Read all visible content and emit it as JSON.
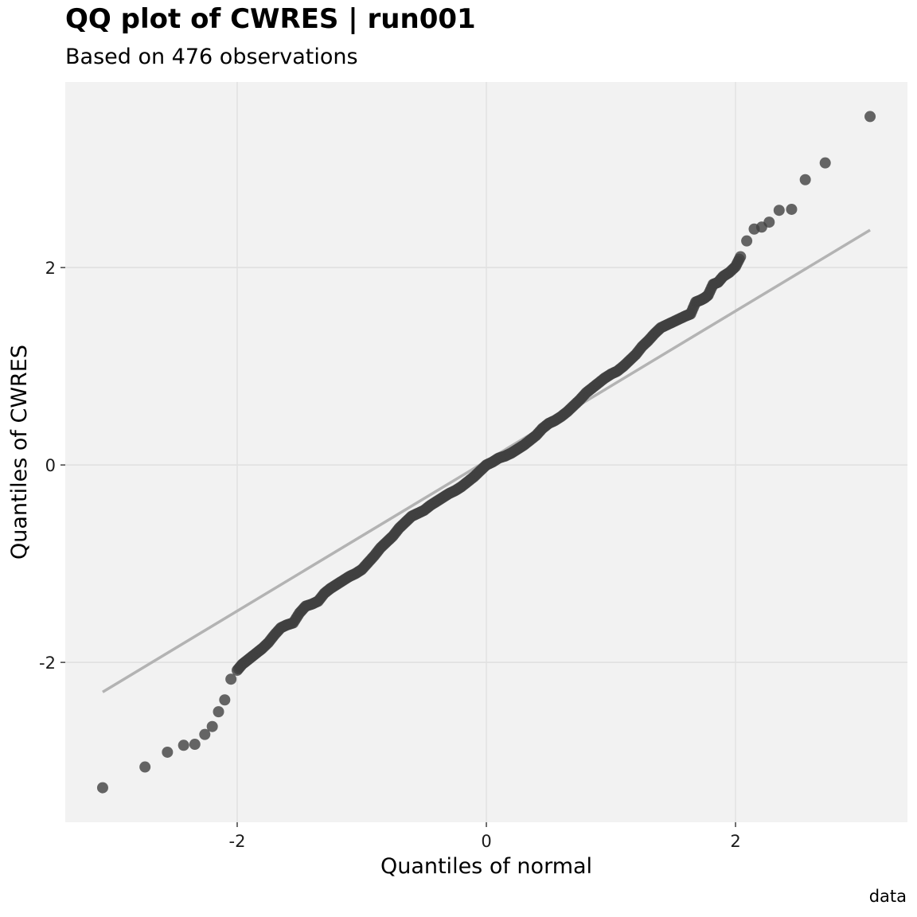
{
  "header": {
    "title": "QQ plot of CWRES | run001",
    "subtitle": "Based on 476 observations"
  },
  "footer": {
    "caption": "data"
  },
  "chart_data": {
    "type": "scatter",
    "title": "QQ plot of CWRES | run001",
    "subtitle": "Based on 476 observations",
    "xlabel": "Quantiles of normal",
    "ylabel": "Quantiles of CWRES",
    "caption": "data",
    "xlim": [
      -3.38,
      3.38
    ],
    "ylim": [
      -3.62,
      3.88
    ],
    "xticks": [
      -2,
      0,
      2
    ],
    "yticks": [
      -2,
      0,
      2
    ],
    "xtick_labels": [
      "-2",
      "0",
      "2"
    ],
    "ytick_labels": [
      "-2",
      "0",
      "2"
    ],
    "grid": true,
    "n_observations": 476,
    "reference_line": {
      "x": [
        -3.08,
        3.08
      ],
      "y": [
        -2.3,
        2.38
      ],
      "color": "#b3b3b3"
    },
    "point_color": "#404040",
    "background_color": "#f2f2f2",
    "grid_color": "#e0e0e0",
    "curve_points": [
      [
        -3.08,
        -3.27
      ],
      [
        -2.74,
        -3.06
      ],
      [
        -2.56,
        -2.91
      ],
      [
        -2.43,
        -2.84
      ],
      [
        -2.34,
        -2.83
      ],
      [
        -2.26,
        -2.73
      ],
      [
        -2.2,
        -2.65
      ],
      [
        -2.15,
        -2.5
      ],
      [
        -2.1,
        -2.38
      ],
      [
        -2.05,
        -2.17
      ],
      [
        -2.0,
        -2.08
      ],
      [
        -1.96,
        -2.02
      ],
      [
        -1.92,
        -1.98
      ],
      [
        -1.88,
        -1.94
      ],
      [
        -1.84,
        -1.9
      ],
      [
        -1.8,
        -1.86
      ],
      [
        -1.75,
        -1.8
      ],
      [
        -1.7,
        -1.72
      ],
      [
        -1.65,
        -1.65
      ],
      [
        -1.6,
        -1.62
      ],
      [
        -1.55,
        -1.6
      ],
      [
        -1.5,
        -1.5
      ],
      [
        -1.45,
        -1.43
      ],
      [
        -1.4,
        -1.41
      ],
      [
        -1.35,
        -1.38
      ],
      [
        -1.3,
        -1.3
      ],
      [
        -1.25,
        -1.25
      ],
      [
        -1.2,
        -1.21
      ],
      [
        -1.15,
        -1.17
      ],
      [
        -1.1,
        -1.13
      ],
      [
        -1.05,
        -1.1
      ],
      [
        -1.0,
        -1.06
      ],
      [
        -0.95,
        -0.99
      ],
      [
        -0.9,
        -0.92
      ],
      [
        -0.85,
        -0.84
      ],
      [
        -0.8,
        -0.78
      ],
      [
        -0.75,
        -0.72
      ],
      [
        -0.7,
        -0.64
      ],
      [
        -0.65,
        -0.58
      ],
      [
        -0.6,
        -0.52
      ],
      [
        -0.55,
        -0.49
      ],
      [
        -0.5,
        -0.46
      ],
      [
        -0.45,
        -0.41
      ],
      [
        -0.4,
        -0.37
      ],
      [
        -0.35,
        -0.33
      ],
      [
        -0.3,
        -0.29
      ],
      [
        -0.25,
        -0.26
      ],
      [
        -0.2,
        -0.22
      ],
      [
        -0.15,
        -0.17
      ],
      [
        -0.1,
        -0.12
      ],
      [
        -0.05,
        -0.06
      ],
      [
        0.0,
        0.0
      ],
      [
        0.05,
        0.03
      ],
      [
        0.1,
        0.07
      ],
      [
        0.15,
        0.09
      ],
      [
        0.2,
        0.12
      ],
      [
        0.25,
        0.16
      ],
      [
        0.3,
        0.2
      ],
      [
        0.35,
        0.25
      ],
      [
        0.4,
        0.3
      ],
      [
        0.45,
        0.37
      ],
      [
        0.5,
        0.42
      ],
      [
        0.55,
        0.45
      ],
      [
        0.6,
        0.49
      ],
      [
        0.65,
        0.54
      ],
      [
        0.7,
        0.6
      ],
      [
        0.75,
        0.66
      ],
      [
        0.8,
        0.73
      ],
      [
        0.85,
        0.78
      ],
      [
        0.9,
        0.83
      ],
      [
        0.95,
        0.88
      ],
      [
        1.0,
        0.92
      ],
      [
        1.05,
        0.95
      ],
      [
        1.1,
        1.0
      ],
      [
        1.15,
        1.06
      ],
      [
        1.2,
        1.12
      ],
      [
        1.25,
        1.2
      ],
      [
        1.3,
        1.26
      ],
      [
        1.35,
        1.33
      ],
      [
        1.4,
        1.39
      ],
      [
        1.45,
        1.42
      ],
      [
        1.5,
        1.45
      ],
      [
        1.55,
        1.48
      ],
      [
        1.6,
        1.51
      ],
      [
        1.64,
        1.53
      ],
      [
        1.68,
        1.65
      ],
      [
        1.72,
        1.67
      ],
      [
        1.75,
        1.69
      ],
      [
        1.78,
        1.72
      ],
      [
        1.82,
        1.83
      ],
      [
        1.86,
        1.85
      ],
      [
        1.9,
        1.91
      ],
      [
        1.95,
        1.95
      ],
      [
        2.0,
        2.01
      ],
      [
        2.04,
        2.11
      ],
      [
        2.09,
        2.27
      ],
      [
        2.15,
        2.39
      ],
      [
        2.21,
        2.41
      ],
      [
        2.27,
        2.46
      ],
      [
        2.35,
        2.58
      ],
      [
        2.45,
        2.59
      ],
      [
        2.56,
        2.89
      ],
      [
        2.72,
        3.06
      ],
      [
        3.08,
        3.53
      ]
    ]
  }
}
